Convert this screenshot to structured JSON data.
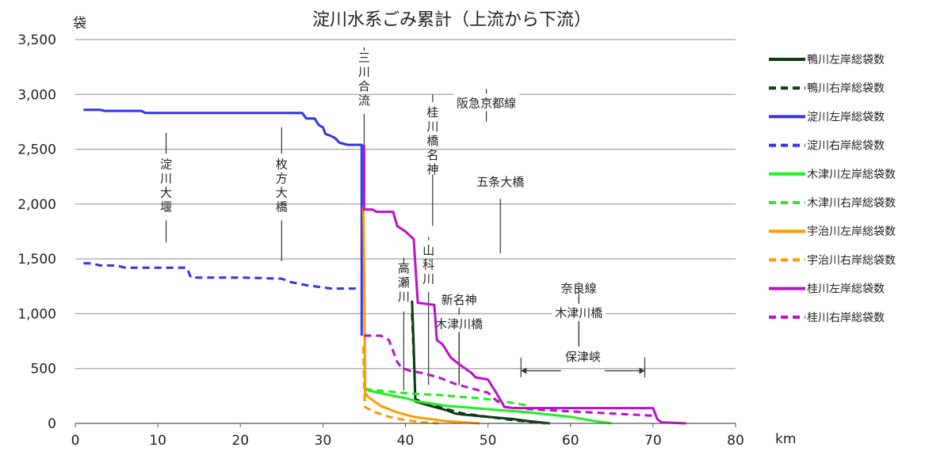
{
  "chart_data": {
    "type": "line",
    "title": "淀川水系ごみ累計（上流から下流）",
    "ylabel": "袋",
    "xlabel": "km",
    "xlim": [
      0,
      80
    ],
    "ylim": [
      0,
      3500
    ],
    "xticks": [
      0,
      10,
      20,
      30,
      40,
      50,
      60,
      70,
      80
    ],
    "yticks": [
      0,
      500,
      1000,
      1500,
      2000,
      2500,
      3000,
      3500
    ],
    "ytick_labels": [
      "0",
      "500",
      "1,000",
      "1,500",
      "2,000",
      "2,500",
      "3,000",
      "3,500"
    ],
    "grid": "horizontal",
    "legend_position": "right",
    "series": [
      {
        "name": "鴨川左岸総袋数",
        "color": "#0d3b12",
        "dash": false,
        "x": [
          40.8,
          41.0,
          41.2,
          43,
          45,
          46,
          47,
          50,
          53,
          55,
          57.5
        ],
        "y": [
          1120,
          700,
          200,
          160,
          120,
          90,
          80,
          60,
          40,
          20,
          0
        ]
      },
      {
        "name": "鴨川右岸総袋数",
        "color": "#0d3b12",
        "dash": true,
        "x": [
          40.8,
          41.0,
          41.2,
          43,
          45,
          47,
          50,
          53,
          57
        ],
        "y": [
          1000,
          650,
          220,
          170,
          130,
          90,
          60,
          30,
          0
        ]
      },
      {
        "name": "淀川左岸総袋数",
        "color": "#3333ee",
        "dash": false,
        "x": [
          1,
          3,
          3.5,
          8,
          8.5,
          27.5,
          28,
          29,
          29.5,
          30,
          30.3,
          31,
          31.5,
          32,
          33,
          34.7,
          34.7
        ],
        "y": [
          2860,
          2860,
          2850,
          2850,
          2830,
          2830,
          2780,
          2780,
          2720,
          2700,
          2640,
          2620,
          2600,
          2560,
          2540,
          2540,
          800
        ]
      },
      {
        "name": "淀川右岸総袋数",
        "color": "#3333ee",
        "dash": true,
        "x": [
          1,
          2,
          3,
          5,
          6,
          13.5,
          14,
          20,
          25,
          26,
          28,
          31,
          34
        ],
        "y": [
          1460,
          1460,
          1440,
          1440,
          1420,
          1420,
          1330,
          1330,
          1320,
          1290,
          1260,
          1230,
          1230
        ]
      },
      {
        "name": "木津川左岸総袋数",
        "color": "#22ee22",
        "dash": false,
        "x": [
          35.1,
          35.5,
          38,
          40,
          41.5,
          45,
          50,
          55,
          60,
          63,
          65
        ],
        "y": [
          320,
          300,
          260,
          230,
          200,
          160,
          130,
          100,
          60,
          20,
          0
        ]
      },
      {
        "name": "木津川右岸総袋数",
        "color": "#22ee22",
        "dash": true,
        "x": [
          35.1,
          35.5,
          38,
          41,
          44,
          47,
          49,
          52,
          55
        ],
        "y": [
          320,
          310,
          290,
          270,
          260,
          240,
          230,
          200,
          160
        ]
      },
      {
        "name": "宇治川左岸総袋数",
        "color": "#ff9900",
        "dash": false,
        "x": [
          34.9,
          35.0,
          35.1,
          35.5,
          37,
          39,
          41,
          43,
          45,
          47,
          49
        ],
        "y": [
          1980,
          1400,
          280,
          240,
          160,
          100,
          60,
          40,
          20,
          10,
          0
        ]
      },
      {
        "name": "宇治川右岸総袋数",
        "color": "#ff9900",
        "dash": true,
        "x": [
          34.9,
          35.0,
          35.1,
          36,
          38,
          40,
          42,
          44
        ],
        "y": [
          700,
          300,
          150,
          110,
          60,
          30,
          10,
          0
        ]
      },
      {
        "name": "桂川左岸総袋数",
        "color": "#bb11cc",
        "dash": false,
        "x": [
          35.0,
          35.0,
          36,
          36.5,
          38.5,
          39,
          40,
          41,
          41.5,
          43.5,
          43.8,
          44.5,
          45.5,
          46.5,
          48,
          48.5,
          50,
          51,
          52,
          53,
          70,
          70.5,
          71,
          74
        ],
        "y": [
          2540,
          1950,
          1950,
          1930,
          1930,
          1800,
          1750,
          1680,
          1100,
          1080,
          760,
          720,
          600,
          540,
          460,
          420,
          400,
          280,
          150,
          140,
          140,
          40,
          10,
          0
        ]
      },
      {
        "name": "桂川右岸総袋数",
        "color": "#bb11cc",
        "dash": true,
        "x": [
          35.0,
          37,
          38,
          39,
          39.5,
          40.5,
          42,
          44,
          46,
          48,
          50,
          51,
          52,
          55,
          60,
          65,
          70
        ],
        "y": [
          800,
          800,
          760,
          560,
          510,
          480,
          460,
          420,
          360,
          320,
          280,
          210,
          150,
          130,
          110,
          90,
          70
        ]
      }
    ],
    "annotations": [
      {
        "text": "淀川大堰",
        "orientation": "vertical",
        "x": 11,
        "y1": 1650,
        "y2": 2650,
        "gap_top": 2430,
        "gap_bottom": 1880
      },
      {
        "text": "枚方大橋",
        "orientation": "vertical",
        "x": 25,
        "y1": 1480,
        "y2": 2700,
        "gap_top": 2430,
        "gap_bottom": 1880
      },
      {
        "text": "三川合流",
        "orientation": "vertical",
        "x": 35,
        "y1": 2500,
        "y2": 3400,
        "gap_top": 3400,
        "gap_bottom": 2850
      },
      {
        "text": "阪急京都線",
        "orientation": "horizontal",
        "x": 49.8,
        "yline": 2920,
        "y1": 2750,
        "y2": 3050
      },
      {
        "text": "桂川橋名神",
        "orientation": "vertical",
        "x": 43.3,
        "y1": 1800,
        "y2": 3000,
        "gap_top": 2900,
        "gap_bottom": 2300
      },
      {
        "text": "五条大橋",
        "orientation": "horizontal",
        "x": 51.5,
        "yline": 2200,
        "y1": 1550,
        "y2": 2050
      },
      {
        "text": "高瀬川",
        "orientation": "vertical",
        "x": 39.8,
        "y1": 300,
        "y2": 1450,
        "gap_top": 1480,
        "gap_bottom": 1050
      },
      {
        "text": "山科川",
        "orientation": "vertical",
        "x": 42.8,
        "y1": 350,
        "y2": 1700,
        "gap_top": 1640,
        "gap_bottom": 1230
      },
      {
        "text": "新名神",
        "orientation": "horizontal",
        "x": 46.5,
        "yline": 1125,
        "y1": 350,
        "y2": 1200
      },
      {
        "text": "木津川橋",
        "orientation": "horizontal",
        "x": 46.5,
        "yline": 905,
        "y1": 350,
        "y2": 1000
      },
      {
        "text": "奈良線",
        "orientation": "horizontal",
        "x": 61,
        "yline": 1230,
        "y1": 700,
        "y2": 1250
      },
      {
        "text": "木津川橋",
        "orientation": "horizontal",
        "x": 61,
        "yline": 1005,
        "y1": 700,
        "y2": 1250
      },
      {
        "text": "保津峡",
        "orientation": "span",
        "x1": 54,
        "x2": 69,
        "yline": 480,
        "yticks": [
          420,
          600
        ]
      }
    ]
  }
}
